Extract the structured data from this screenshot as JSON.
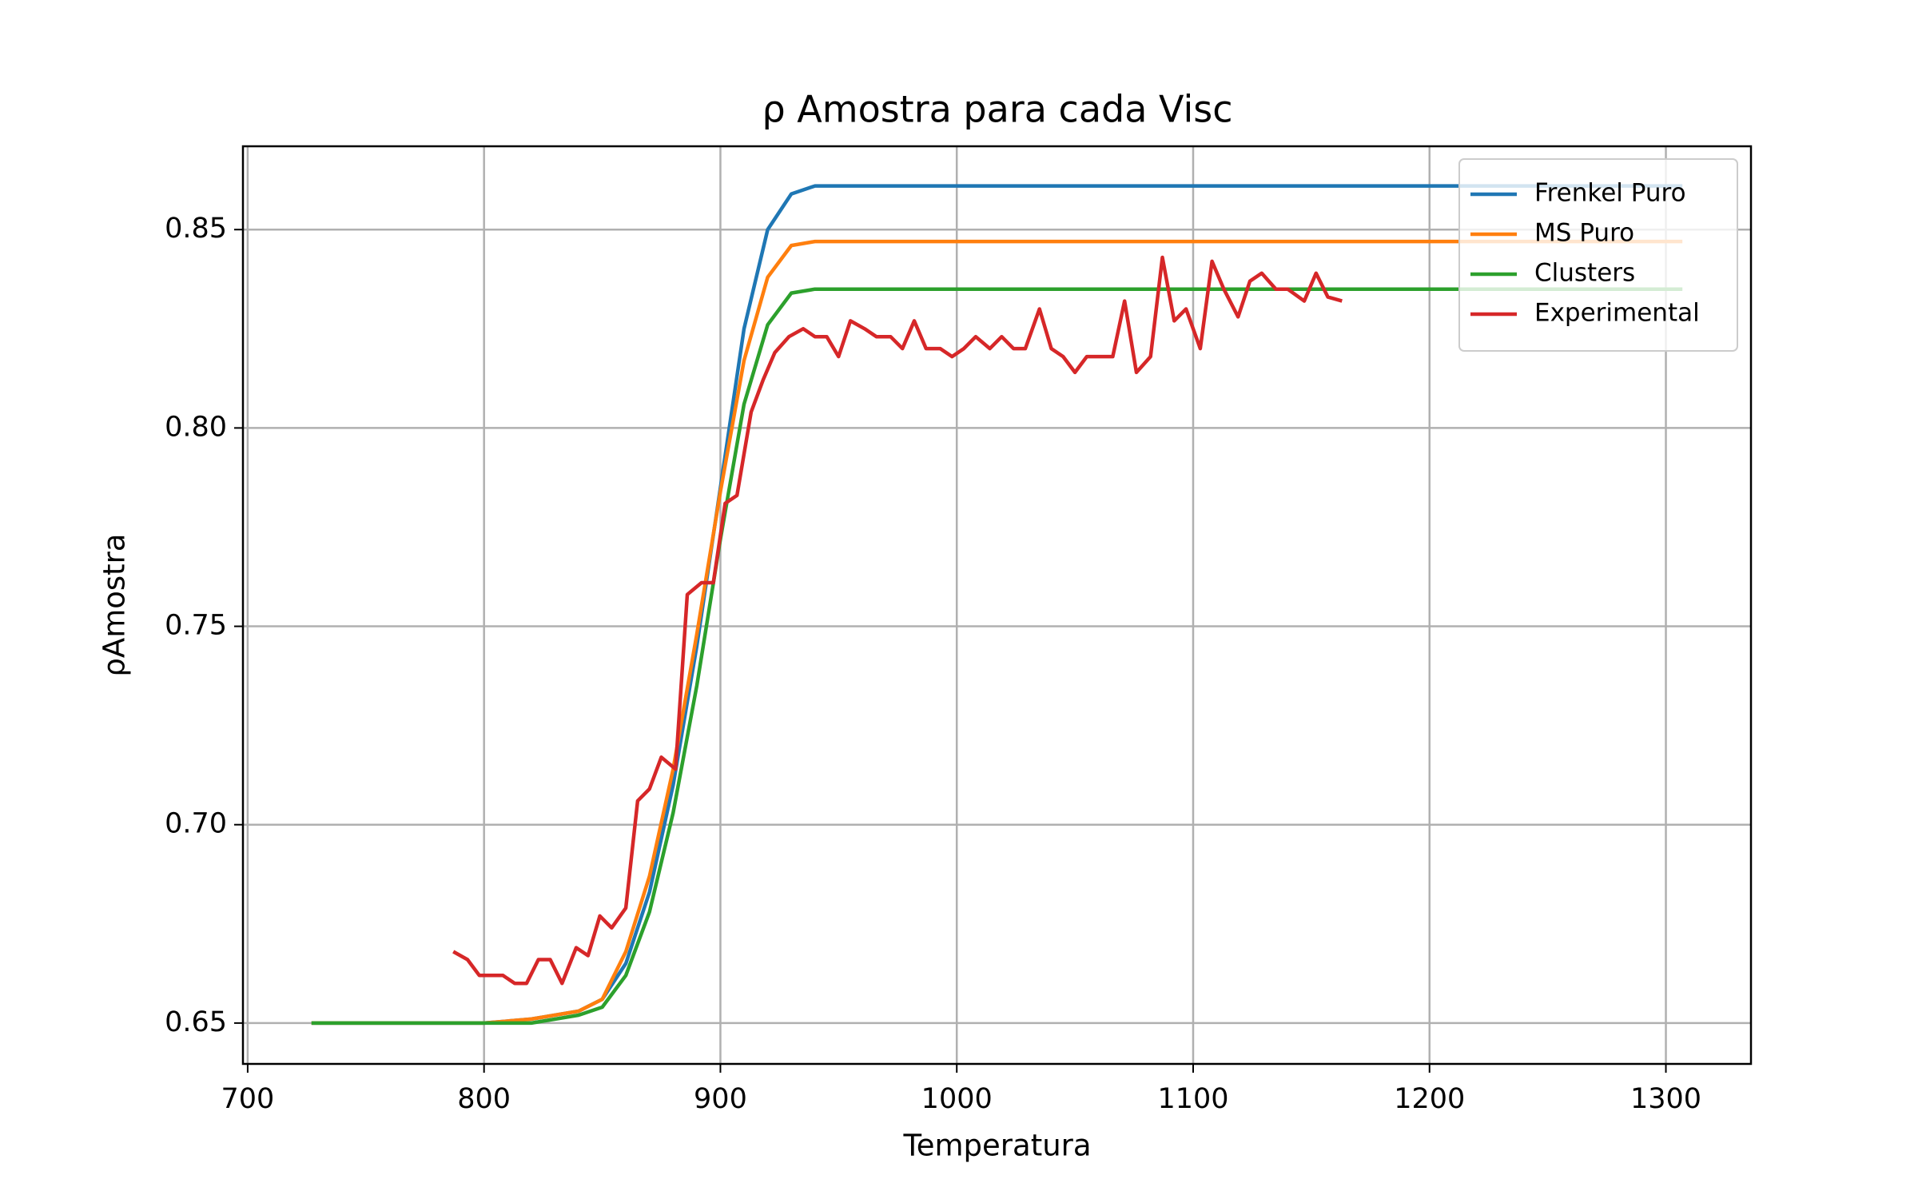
{
  "chart_data": {
    "type": "line",
    "title": "ρ Amostra para cada Visc",
    "x_label": "Temperatura",
    "y_label": "ρAmostra",
    "xlim": [
      698,
      1336
    ],
    "ylim": [
      0.6397,
      0.871
    ],
    "xticks": [
      700,
      800,
      900,
      1000,
      1100,
      1200,
      1300
    ],
    "yticks": [
      0.65,
      {
        "value": 0.7,
        "label": "0.70"
      },
      0.75,
      {
        "value": 0.8,
        "label": "0.80"
      },
      0.85
    ],
    "grid": true,
    "legend": "upper right",
    "series": [
      {
        "name": "Frenkel Puro",
        "color": "#1f77b4",
        "x": [
          727,
          780,
          800,
          820,
          840,
          850,
          860,
          870,
          880,
          890,
          900,
          910,
          920,
          930,
          940,
          960,
          1000,
          1100,
          1200,
          1307
        ],
        "values": [
          0.65,
          0.65,
          0.65,
          0.651,
          0.653,
          0.656,
          0.665,
          0.683,
          0.71,
          0.745,
          0.785,
          0.825,
          0.85,
          0.859,
          0.861,
          0.861,
          0.861,
          0.861,
          0.861,
          0.861
        ]
      },
      {
        "name": "MS Puro",
        "color": "#ff7f0e",
        "x": [
          727,
          780,
          800,
          820,
          840,
          850,
          860,
          870,
          880,
          890,
          900,
          910,
          920,
          930,
          940,
          960,
          1000,
          1100,
          1200,
          1307
        ],
        "values": [
          0.65,
          0.65,
          0.65,
          0.651,
          0.653,
          0.656,
          0.668,
          0.687,
          0.714,
          0.748,
          0.784,
          0.817,
          0.838,
          0.846,
          0.847,
          0.847,
          0.847,
          0.847,
          0.847,
          0.847
        ]
      },
      {
        "name": "Clusters",
        "color": "#2ca02c",
        "x": [
          727,
          780,
          800,
          820,
          840,
          850,
          860,
          870,
          880,
          890,
          900,
          910,
          920,
          930,
          940,
          960,
          1000,
          1100,
          1200,
          1307
        ],
        "values": [
          0.65,
          0.65,
          0.65,
          0.65,
          0.652,
          0.654,
          0.662,
          0.678,
          0.703,
          0.735,
          0.772,
          0.806,
          0.826,
          0.834,
          0.835,
          0.835,
          0.835,
          0.835,
          0.835,
          0.835
        ]
      },
      {
        "name": "Experimental",
        "color": "#d62728",
        "x": [
          787,
          793,
          798,
          803,
          808,
          813,
          818,
          823,
          828,
          833,
          839,
          844,
          849,
          854,
          860,
          865,
          870,
          875,
          881,
          886,
          892,
          897,
          902,
          907,
          913,
          918,
          923,
          929,
          935,
          940,
          945,
          950,
          955,
          961,
          966,
          972,
          977,
          982,
          987,
          993,
          998,
          1003,
          1008,
          1014,
          1019,
          1024,
          1029,
          1035,
          1040,
          1045,
          1050,
          1055,
          1061,
          1066,
          1071,
          1076,
          1082,
          1087,
          1092,
          1097,
          1103,
          1108,
          1113,
          1119,
          1124,
          1129,
          1135,
          1140,
          1147,
          1152,
          1157,
          1163
        ],
        "values": [
          0.668,
          0.666,
          0.662,
          0.662,
          0.662,
          0.66,
          0.66,
          0.666,
          0.666,
          0.66,
          0.669,
          0.667,
          0.677,
          0.674,
          0.679,
          0.706,
          0.709,
          0.717,
          0.714,
          0.758,
          0.761,
          0.761,
          0.781,
          0.783,
          0.804,
          0.812,
          0.819,
          0.823,
          0.825,
          0.823,
          0.823,
          0.818,
          0.827,
          0.825,
          0.823,
          0.823,
          0.82,
          0.827,
          0.82,
          0.82,
          0.818,
          0.82,
          0.823,
          0.82,
          0.823,
          0.82,
          0.82,
          0.83,
          0.82,
          0.818,
          0.814,
          0.818,
          0.818,
          0.818,
          0.832,
          0.814,
          0.818,
          0.843,
          0.827,
          0.83,
          0.82,
          0.842,
          0.835,
          0.828,
          0.837,
          0.839,
          0.835,
          0.835,
          0.832,
          0.839,
          0.833,
          0.832
        ]
      }
    ]
  }
}
